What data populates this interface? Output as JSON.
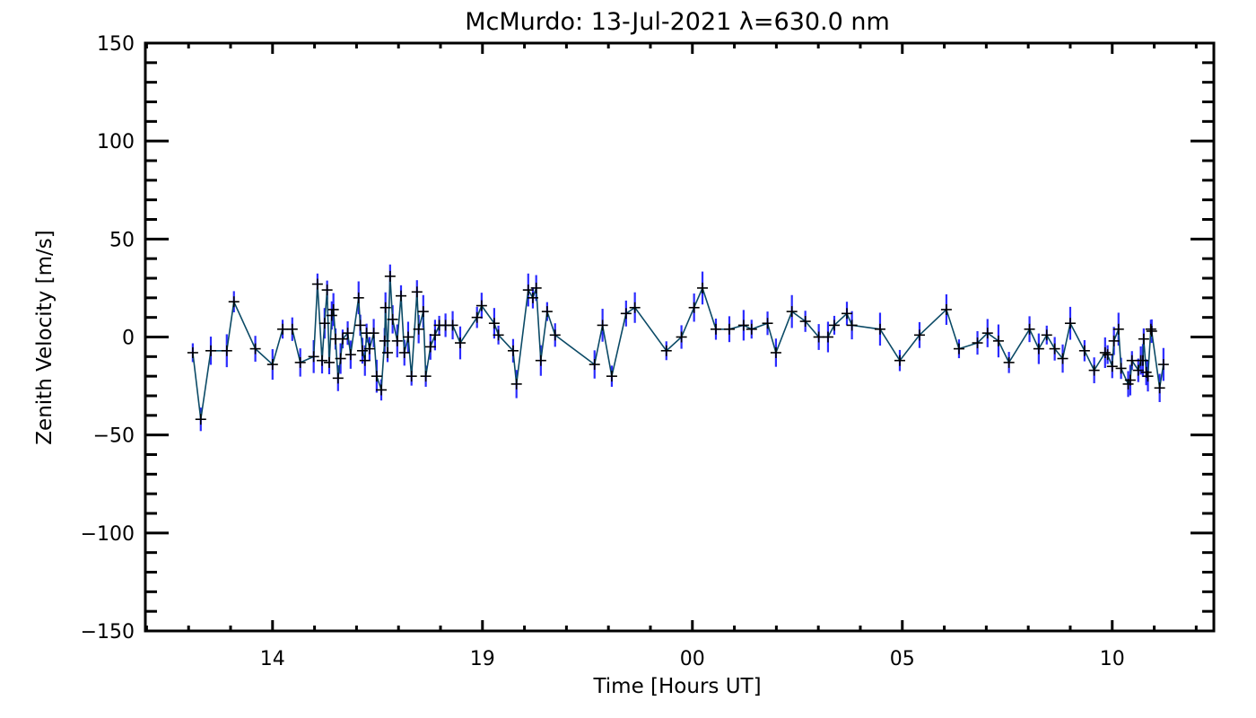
{
  "chart_data": {
    "type": "line",
    "title": "McMurdo: 13-Jul-2021 λ=630.0 nm",
    "xlabel": "Time [Hours UT]",
    "ylabel": "Zenith Velocity [m/s]",
    "xlim": [
      10.97,
      36.42
    ],
    "ylim": [
      -150,
      150
    ],
    "x_major_ticks": [
      14,
      19,
      24,
      29,
      34
    ],
    "x_tick_labels": [
      "14",
      "19",
      "00",
      "05",
      "10"
    ],
    "x_minor_step": 1,
    "y_major_ticks": [
      150,
      100,
      50,
      0,
      -50,
      -100,
      -150
    ],
    "y_tick_labels": [
      "150",
      "100",
      "50",
      "0",
      "−50",
      "−100",
      "−150"
    ],
    "y_minor_step": 10,
    "grid": false,
    "colors": {
      "line": "#0b4a66",
      "error_bar": "#2a2aff",
      "marker": "#000000",
      "axes": "#000000"
    },
    "typical_error": 6,
    "series": [
      {
        "name": "Zenith Velocity",
        "x": [
          12.1,
          12.29,
          12.53,
          12.91,
          13.08,
          13.59,
          14.0,
          14.24,
          14.47,
          14.66,
          14.98,
          15.07,
          15.18,
          15.24,
          15.3,
          15.35,
          15.41,
          15.45,
          15.5,
          15.56,
          15.62,
          15.67,
          15.79,
          15.86,
          16.05,
          16.09,
          16.14,
          16.2,
          16.24,
          16.31,
          16.41,
          16.48,
          16.59,
          16.67,
          16.69,
          16.74,
          16.8,
          16.86,
          16.97,
          17.06,
          17.14,
          17.23,
          17.31,
          17.44,
          17.48,
          17.59,
          17.65,
          17.76,
          17.87,
          17.97,
          18.12,
          18.29,
          18.47,
          18.87,
          18.98,
          19.28,
          19.38,
          19.73,
          19.81,
          20.09,
          20.2,
          20.28,
          20.39,
          20.54,
          20.73,
          21.67,
          21.86,
          22.08,
          22.42,
          22.63,
          23.38,
          23.74,
          24.04,
          24.24,
          24.56,
          24.88,
          25.22,
          25.41,
          25.79,
          25.99,
          26.37,
          26.69,
          27.01,
          27.23,
          27.38,
          27.68,
          27.8,
          28.47,
          28.94,
          29.41,
          30.05,
          30.35,
          30.79,
          31.03,
          31.29,
          31.54,
          32.03,
          32.25,
          32.44,
          32.63,
          32.82,
          33.0,
          33.34,
          33.57,
          33.83,
          33.89,
          34.0,
          34.04,
          34.15,
          34.21,
          34.38,
          34.43,
          34.47,
          34.62,
          34.68,
          34.73,
          34.75,
          34.81,
          34.85,
          34.92,
          34.94,
          35.13,
          35.22
        ],
        "y": [
          -8,
          -42,
          -7,
          -7,
          18,
          -6,
          -14,
          4,
          4,
          -13,
          -10,
          27,
          -12,
          7,
          24,
          -13,
          11,
          14,
          -1,
          -21,
          -11,
          -1,
          2,
          -9,
          20,
          6,
          -7,
          -12,
          2,
          -6,
          2,
          -20,
          -27,
          -2,
          15,
          -8,
          31,
          9,
          -2,
          21,
          -8,
          0,
          -20,
          23,
          4,
          13,
          -20,
          -5,
          1,
          6,
          6,
          6,
          -3,
          10,
          16,
          7,
          1,
          -7,
          -24,
          24,
          20,
          25,
          -12,
          13,
          1,
          -14,
          6,
          -20,
          12,
          15,
          -7,
          0,
          15,
          25,
          4,
          4,
          6,
          4,
          7,
          -8,
          13,
          8,
          0,
          0,
          6,
          12,
          6,
          4,
          -12,
          1,
          14,
          -6,
          -3,
          2,
          -2,
          -13,
          4,
          -6,
          1,
          -6,
          -11,
          7,
          -7,
          -17,
          -8,
          -9,
          -15,
          -2,
          4,
          -16,
          -24,
          -22,
          -12,
          -17,
          -12,
          -12,
          -1,
          -18,
          -20,
          4,
          3,
          -26,
          -14
        ]
      }
    ]
  }
}
